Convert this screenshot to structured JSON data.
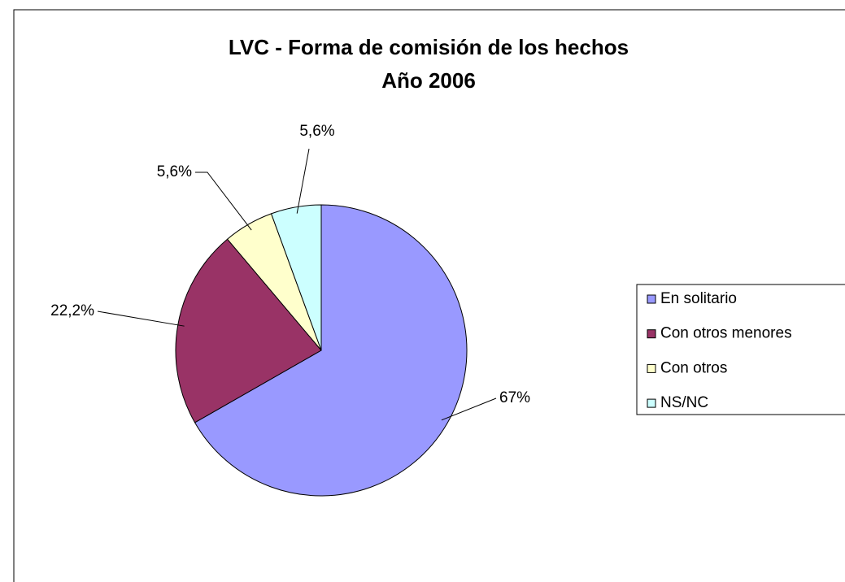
{
  "chart_data": {
    "type": "pie",
    "title": "LVC - Forma de comisión de los hechos",
    "subtitle": "Año 2006",
    "categories": [
      "En solitario",
      "Con otros menores",
      "Con otros",
      "NS/NC"
    ],
    "values": [
      67,
      22.2,
      5.6,
      5.6
    ],
    "value_labels": [
      "67%",
      "22,2%",
      "5,6%",
      "5,6%"
    ],
    "colors": [
      "#9999ff",
      "#993366",
      "#ffffcc",
      "#ccffff"
    ],
    "legend": "right"
  }
}
